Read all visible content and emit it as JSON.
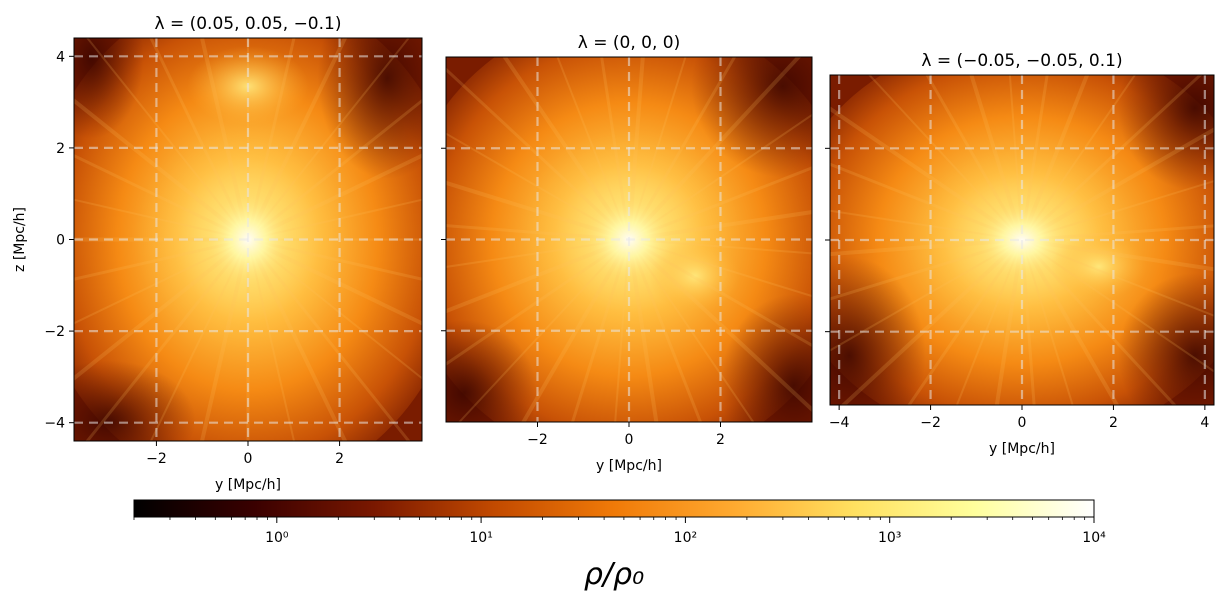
{
  "chart_data": [
    {
      "type": "heatmap",
      "title": "λ = (0.05, 0.05, −0.1)",
      "xlabel": "y [Mpc/h]",
      "ylabel": "z [Mpc/h]",
      "xlim": [
        -3.8,
        3.8
      ],
      "ylim": [
        -4.4,
        4.4
      ],
      "xticks": [
        -2,
        0,
        2
      ],
      "xtick_labels": [
        "−2",
        "0",
        "2"
      ],
      "yticks": [
        -4,
        -2,
        0,
        2,
        4
      ],
      "ytick_labels": [
        "−4",
        "−2",
        "0",
        "2",
        "4"
      ],
      "grid": "dashed",
      "show_ytick_labels": true
    },
    {
      "type": "heatmap",
      "title": "λ = (0, 0, 0)",
      "xlabel": "y [Mpc/h]",
      "ylabel": "",
      "xlim": [
        -4.0,
        4.0
      ],
      "ylim": [
        -4.0,
        4.0
      ],
      "xticks": [
        -2,
        0,
        2
      ],
      "xtick_labels": [
        "−2",
        "0",
        "2"
      ],
      "yticks": [
        -2,
        0,
        2
      ],
      "ytick_labels": [],
      "grid": "dashed",
      "show_ytick_labels": false
    },
    {
      "type": "heatmap",
      "title": "λ = (−0.05, −0.05, 0.1)",
      "xlabel": "y [Mpc/h]",
      "ylabel": "",
      "xlim": [
        -4.2,
        4.2
      ],
      "ylim": [
        -3.6,
        3.6
      ],
      "xticks": [
        -4,
        -2,
        0,
        2,
        4
      ],
      "xtick_labels": [
        "−4",
        "−2",
        "0",
        "2",
        "4"
      ],
      "yticks": [
        -2,
        0,
        2
      ],
      "ytick_labels": [],
      "grid": "dashed",
      "show_ytick_labels": false
    }
  ],
  "colorbar": {
    "label": "ρ/ρ₀",
    "scale": "log",
    "colormap": "afmhot",
    "range": [
      0.2,
      10000
    ],
    "ticks": [
      1,
      10,
      100,
      1000,
      10000
    ],
    "tick_labels": [
      "10⁰",
      "10¹",
      "10²",
      "10³",
      "10⁴"
    ]
  },
  "colors": {
    "colormap_stops": [
      "#000000",
      "#3a0000",
      "#7a1800",
      "#c24a00",
      "#f07a08",
      "#ffaa30",
      "#ffe060",
      "#ffff9c",
      "#ffffff"
    ]
  }
}
